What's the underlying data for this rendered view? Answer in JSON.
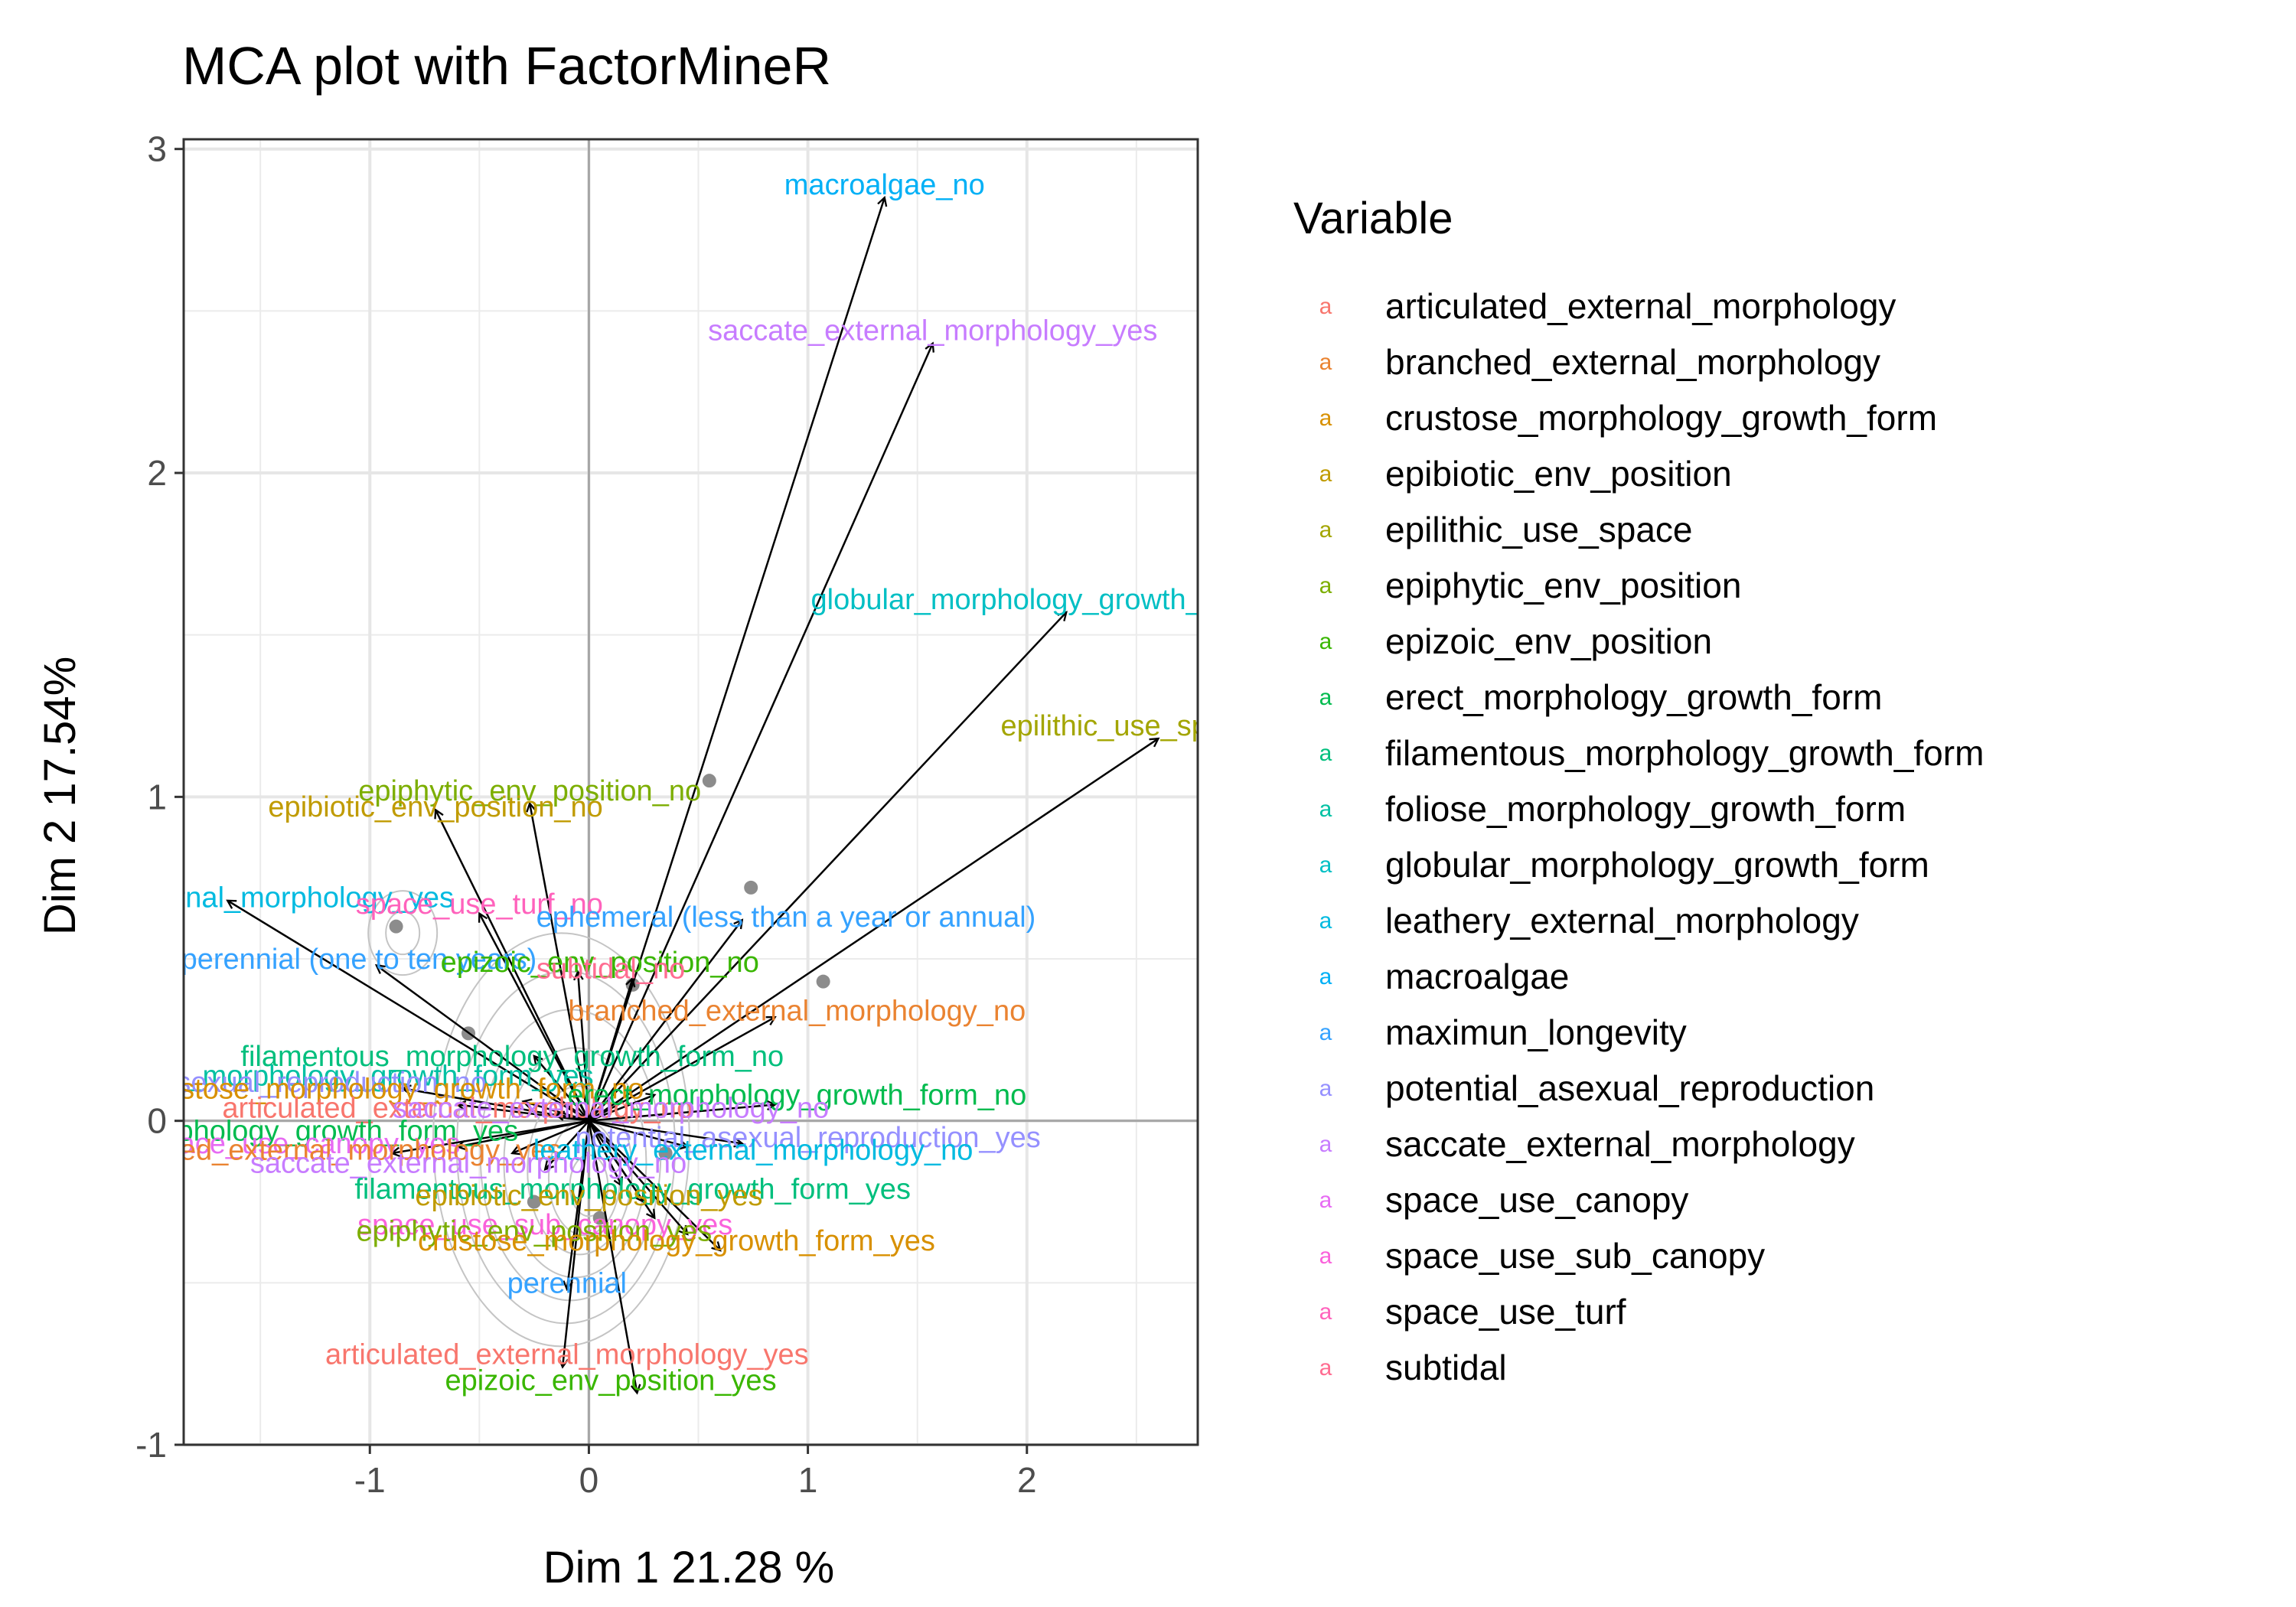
{
  "chart_data": {
    "type": "scatter",
    "title": "MCA plot with FactorMineR",
    "xlabel": "Dim 1 21.28 %",
    "ylabel": "Dim 2 17.54%",
    "xlim": [
      -1.85,
      2.78
    ],
    "ylim": [
      -1.0,
      3.03
    ],
    "x_ticks": [
      "-1",
      "0",
      "1",
      "2"
    ],
    "x_tick_values": [
      -1,
      0,
      1,
      2
    ],
    "y_ticks": [
      "-1",
      "0",
      "1",
      "2",
      "3"
    ],
    "y_tick_values": [
      -1,
      0,
      1,
      2,
      3
    ],
    "grid": true,
    "legend_position": "right",
    "legend": {
      "title": "Variable",
      "key_glyph": "a",
      "entries": [
        {
          "name": "articulated_external_morphology",
          "color": "#F8766D"
        },
        {
          "name": "branched_external_morphology",
          "color": "#EA8331"
        },
        {
          "name": "crustose_morphology_growth_form",
          "color": "#D89000"
        },
        {
          "name": "epibiotic_env_position",
          "color": "#C09B00"
        },
        {
          "name": "epilithic_use_space",
          "color": "#A3A500"
        },
        {
          "name": "epiphytic_env_position",
          "color": "#7CAE00"
        },
        {
          "name": "epizoic_env_position",
          "color": "#39B600"
        },
        {
          "name": "erect_morphology_growth_form",
          "color": "#00BB4E"
        },
        {
          "name": "filamentous_morphology_growth_form",
          "color": "#00BF7D"
        },
        {
          "name": "foliose_morphology_growth_form",
          "color": "#00C1A3"
        },
        {
          "name": "globular_morphology_growth_form",
          "color": "#00BFC4"
        },
        {
          "name": "leathery_external_morphology",
          "color": "#00BAE0"
        },
        {
          "name": "macroalgae",
          "color": "#00B0F6"
        },
        {
          "name": "maximun_longevity",
          "color": "#35A2FF"
        },
        {
          "name": "potential_asexual_reproduction",
          "color": "#9590FF"
        },
        {
          "name": "saccate_external_morphology",
          "color": "#C77CFF"
        },
        {
          "name": "space_use_canopy",
          "color": "#E76BF3"
        },
        {
          "name": "space_use_sub_canopy",
          "color": "#FA62DB"
        },
        {
          "name": "space_use_turf",
          "color": "#FF62BC"
        },
        {
          "name": "subtidal",
          "color": "#FF6C91"
        }
      ]
    },
    "individuals": [
      {
        "x": 0.55,
        "y": 1.05
      },
      {
        "x": 0.74,
        "y": 0.72
      },
      {
        "x": 1.07,
        "y": 0.43
      },
      {
        "x": -0.88,
        "y": 0.6
      },
      {
        "x": -0.55,
        "y": 0.27
      },
      {
        "x": 0.2,
        "y": 0.42
      },
      {
        "x": -0.25,
        "y": -0.25
      },
      {
        "x": 0.05,
        "y": -0.3
      },
      {
        "x": 0.35,
        "y": -0.1
      }
    ],
    "density_center": {
      "x": 0.0,
      "y": -0.2
    },
    "arrows": [
      {
        "label": "macroalgae_no",
        "x": 1.35,
        "y": 2.85,
        "color": "#00B0F6"
      },
      {
        "label": "saccate_external_morphology_yes",
        "x": 1.57,
        "y": 2.4,
        "color": "#C77CFF"
      },
      {
        "label": "globular_morphology_growth_form_yes",
        "x": 2.18,
        "y": 1.57,
        "color": "#00BFC4"
      },
      {
        "label": "epilithic_use_space_yes",
        "x": 2.6,
        "y": 1.18,
        "color": "#A3A500"
      },
      {
        "label": "epiphytic_env_position_no",
        "x": -0.27,
        "y": 0.98,
        "color": "#7CAE00"
      },
      {
        "label": "epibiotic_env_position_no",
        "x": -0.7,
        "y": 0.96,
        "color": "#C09B00"
      },
      {
        "label": "leathery_external_morphology_yes",
        "x": -1.65,
        "y": 0.68,
        "color": "#00BAE0"
      },
      {
        "label": "space_use_turf_no",
        "x": -0.5,
        "y": 0.64,
        "color": "#FF62BC"
      },
      {
        "label": "ephemeral (less than a year or annual)",
        "x": 0.7,
        "y": 0.62,
        "color": "#35A2FF"
      },
      {
        "label": "perennial (one to ten years)",
        "x": -0.97,
        "y": 0.48,
        "color": "#35A2FF"
      },
      {
        "label": "epizoic_env_position_no",
        "x": -0.05,
        "y": 0.46,
        "color": "#39B600"
      },
      {
        "label": "subtidal_no",
        "x": 0.2,
        "y": 0.44,
        "color": "#FF6C91"
      },
      {
        "label": "branched_external_morphology_no",
        "x": 0.85,
        "y": 0.32,
        "color": "#EA8331"
      },
      {
        "label": "filamentous_morphology_growth_form_no",
        "x": -0.25,
        "y": 0.2,
        "color": "#00BF7D"
      },
      {
        "label": "foliose_morphology_growth_form_yes",
        "x": -0.85,
        "y": 0.1,
        "color": "#00C1A3"
      },
      {
        "label": "potential_asexual_reproduction_no",
        "x": -0.6,
        "y": 0.05,
        "color": "#9590FF"
      },
      {
        "label": "crustose_morphology_growth_form_no",
        "x": -0.3,
        "y": 0.06,
        "color": "#D89000"
      },
      {
        "label": "articulated_external_morphology_no",
        "x": -0.15,
        "y": 0.02,
        "color": "#F8766D"
      },
      {
        "label": "erect_morphology_growth_form_no",
        "x": 0.85,
        "y": 0.05,
        "color": "#00BB4E"
      },
      {
        "label": "saccate_external_morphology_no",
        "x": 0.3,
        "y": 0.08,
        "color": "#C77CFF"
      },
      {
        "label": "erect_morphology_growth_form_yes",
        "x": -0.9,
        "y": -0.1,
        "color": "#00BB4E"
      },
      {
        "label": "space_use_canopy_yes",
        "x": -0.6,
        "y": -0.08,
        "color": "#E76BF3"
      },
      {
        "label": "branched_external_morphology_yes",
        "x": -0.35,
        "y": -0.1,
        "color": "#EA8331"
      },
      {
        "label": "potential_asexual_reproduction_yes",
        "x": 0.7,
        "y": -0.07,
        "color": "#9590FF"
      },
      {
        "label": "leathery_external_morphology_no",
        "x": 0.45,
        "y": -0.08,
        "color": "#00BAE0"
      },
      {
        "label": "saccate_external_morphology_no",
        "x": -0.2,
        "y": -0.15,
        "color": "#C77CFF"
      },
      {
        "label": "filamentous_morphology_growth_form_yes",
        "x": 0.25,
        "y": -0.25,
        "color": "#00BF7D"
      },
      {
        "label": "epibiotic_env_position_yes",
        "x": 0.15,
        "y": -0.2,
        "color": "#C09B00"
      },
      {
        "label": "space_use_sub_canopy_yes",
        "x": 0.3,
        "y": -0.3,
        "color": "#FA62DB"
      },
      {
        "label": "epiphytic_env_position_yes",
        "x": 0.45,
        "y": -0.35,
        "color": "#7CAE00"
      },
      {
        "label": "crustose_morphology_growth_form_yes",
        "x": 0.6,
        "y": -0.4,
        "color": "#D89000"
      },
      {
        "label": "perennial",
        "x": -0.1,
        "y": -0.52,
        "color": "#35A2FF"
      },
      {
        "label": "articulated_external_morphology_yes",
        "x": -0.12,
        "y": -0.76,
        "color": "#F8766D"
      },
      {
        "label": "epizoic_env_position_yes",
        "x": 0.22,
        "y": -0.84,
        "color": "#39B600"
      }
    ],
    "labels": [
      {
        "text": "macroalgae_no",
        "x": 1.35,
        "y": 2.85,
        "color": "#00B0F6"
      },
      {
        "text": "saccate_external_morphology_yes",
        "x": 1.57,
        "y": 2.4,
        "color": "#C77CFF"
      },
      {
        "text": "globular_morphology_growth_form_yes",
        "x": 2.18,
        "y": 1.57,
        "color": "#00BFC4"
      },
      {
        "text": "epilithic_use_space_yes",
        "x": 2.6,
        "y": 1.18,
        "color": "#A3A500"
      },
      {
        "text": "epiphytic_env_position_no",
        "x": -0.27,
        "y": 0.98,
        "color": "#7CAE00"
      },
      {
        "text": "epibiotic_env_position_no",
        "x": -0.7,
        "y": 0.93,
        "color": "#C09B00"
      },
      {
        "text": "leathery_external_morphology_yes",
        "x": -1.65,
        "y": 0.65,
        "color": "#00BAE0"
      },
      {
        "text": "space_use_turf_no",
        "x": -0.5,
        "y": 0.63,
        "color": "#FF62BC"
      },
      {
        "text": "ephemeral (less than a year or annual)",
        "x": 0.9,
        "y": 0.59,
        "color": "#35A2FF"
      },
      {
        "text": "perennial (one to ten years)",
        "x": -1.05,
        "y": 0.46,
        "color": "#35A2FF"
      },
      {
        "text": "epizoic_env_position_no",
        "x": 0.05,
        "y": 0.45,
        "color": "#39B600"
      },
      {
        "text": "subtidal_no",
        "x": 0.1,
        "y": 0.43,
        "color": "#FF6C91"
      },
      {
        "text": "branched_external_morphology_no",
        "x": 0.95,
        "y": 0.3,
        "color": "#EA8331"
      },
      {
        "text": "filamentous_morphology_growth_form_no",
        "x": -0.35,
        "y": 0.16,
        "color": "#00BF7D"
      },
      {
        "text": "foliose_morphology_growth_form_yes",
        "x": -1.1,
        "y": 0.1,
        "color": "#00C1A3"
      },
      {
        "text": "potential_asexual_reproduction_no",
        "x": -1.5,
        "y": 0.08,
        "color": "#9590FF"
      },
      {
        "text": "crustose_morphology_growth_form_no",
        "x": -0.9,
        "y": 0.06,
        "color": "#D89000"
      },
      {
        "text": "articulated_external_morphology_no",
        "x": -0.6,
        "y": 0.0,
        "color": "#F8766D"
      },
      {
        "text": "erect_morphology_growth_form_no",
        "x": 0.95,
        "y": 0.04,
        "color": "#00BB4E"
      },
      {
        "text": "saccate_external_morphology_no",
        "x": 0.1,
        "y": 0.0,
        "color": "#C77CFF"
      },
      {
        "text": "erect_morphology_growth_form_yes",
        "x": -1.4,
        "y": -0.07,
        "color": "#00BB4E"
      },
      {
        "text": "space_use_canopy_yes",
        "x": -1.3,
        "y": -0.11,
        "color": "#E76BF3"
      },
      {
        "text": "branched_external_morphology_yes",
        "x": -1.2,
        "y": -0.13,
        "color": "#EA8331"
      },
      {
        "text": "potential_asexual_reproduction_yes",
        "x": 1.0,
        "y": -0.09,
        "color": "#9590FF"
      },
      {
        "text": "leathery_external_morphology_no",
        "x": 0.75,
        "y": -0.13,
        "color": "#00BAE0"
      },
      {
        "text": "saccate_external_morphology_no",
        "x": -0.55,
        "y": -0.17,
        "color": "#C77CFF"
      },
      {
        "text": "filamentous_morphology_growth_form_yes",
        "x": 0.2,
        "y": -0.25,
        "color": "#00BF7D"
      },
      {
        "text": "epibiotic_env_position_yes",
        "x": 0.0,
        "y": -0.27,
        "color": "#C09B00"
      },
      {
        "text": "space_use_sub_canopy_yes",
        "x": -0.2,
        "y": -0.36,
        "color": "#FA62DB"
      },
      {
        "text": "epiphytic_env_position_yes",
        "x": -0.25,
        "y": -0.38,
        "color": "#7CAE00"
      },
      {
        "text": "crustose_morphology_growth_form_yes",
        "x": 0.4,
        "y": -0.41,
        "color": "#D89000"
      },
      {
        "text": "perennial",
        "x": -0.1,
        "y": -0.54,
        "color": "#35A2FF"
      },
      {
        "text": "articulated_external_morphology_yes",
        "x": -0.1,
        "y": -0.76,
        "color": "#F8766D"
      },
      {
        "text": "epizoic_env_position_yes",
        "x": 0.1,
        "y": -0.84,
        "color": "#39B600"
      }
    ]
  }
}
